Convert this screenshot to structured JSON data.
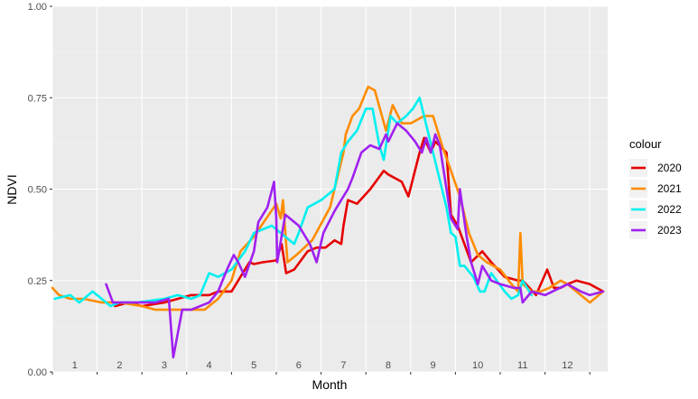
{
  "chart_data": {
    "type": "line",
    "xlabel": "Month",
    "ylabel": "NDVI",
    "xlim": [
      0.5,
      12.9
    ],
    "ylim": [
      0,
      1
    ],
    "yticks": [
      "0.00",
      "0.25",
      "0.50",
      "0.75",
      "1.00"
    ],
    "month_labels": [
      "1",
      "2",
      "3",
      "4",
      "5",
      "6",
      "7",
      "8",
      "9",
      "10",
      "11",
      "12"
    ],
    "grid": true,
    "legend": {
      "title": "colour",
      "position": "right"
    },
    "series": [
      {
        "name": "2020",
        "color": "#e60000",
        "x": [
          1.9,
          2.2,
          2.5,
          3.0,
          3.3,
          3.6,
          3.8,
          4.0,
          4.2,
          4.25,
          4.5,
          4.9,
          5.0,
          5.2,
          5.5,
          5.62,
          5.72,
          5.9,
          6.2,
          6.4,
          6.6,
          6.8,
          6.95,
          7.0,
          7.1,
          7.3,
          7.6,
          7.9,
          8.0,
          8.3,
          8.45,
          8.7,
          8.8,
          8.95,
          9.05,
          9.3,
          9.4,
          9.55,
          9.7,
          9.85,
          10.1,
          10.3,
          10.6,
          10.9,
          11.0,
          11.3,
          11.55,
          11.7,
          11.85,
          12.0,
          12.2,
          12.5,
          12.8
        ],
        "y": [
          0.18,
          0.19,
          0.18,
          0.19,
          0.2,
          0.21,
          0.21,
          0.21,
          0.22,
          0.22,
          0.22,
          0.3,
          0.295,
          0.3,
          0.305,
          0.35,
          0.27,
          0.28,
          0.33,
          0.34,
          0.34,
          0.36,
          0.35,
          0.4,
          0.47,
          0.46,
          0.5,
          0.55,
          0.54,
          0.52,
          0.48,
          0.6,
          0.64,
          0.6,
          0.63,
          0.6,
          0.43,
          0.4,
          0.35,
          0.3,
          0.33,
          0.3,
          0.26,
          0.25,
          0.25,
          0.21,
          0.28,
          0.23,
          0.23,
          0.24,
          0.25,
          0.24,
          0.22
        ]
      },
      {
        "name": "2021",
        "color": "#ff8c00",
        "x": [
          0.5,
          0.65,
          0.9,
          1.2,
          1.6,
          2.0,
          2.5,
          2.8,
          3.1,
          3.5,
          3.9,
          4.2,
          4.5,
          4.7,
          5.0,
          5.5,
          5.6,
          5.65,
          5.75,
          5.95,
          6.3,
          6.7,
          6.9,
          7.0,
          7.05,
          7.2,
          7.35,
          7.55,
          7.7,
          7.95,
          8.1,
          8.3,
          8.5,
          8.8,
          9.0,
          9.2,
          9.4,
          9.6,
          9.8,
          10.0,
          10.2,
          10.5,
          10.75,
          10.9,
          10.95,
          11.0,
          11.2,
          11.4,
          11.6,
          11.85,
          12.0,
          12.3,
          12.5,
          12.8
        ],
        "y": [
          0.23,
          0.21,
          0.2,
          0.2,
          0.19,
          0.19,
          0.18,
          0.17,
          0.17,
          0.17,
          0.17,
          0.2,
          0.25,
          0.33,
          0.37,
          0.46,
          0.42,
          0.47,
          0.3,
          0.32,
          0.36,
          0.45,
          0.55,
          0.6,
          0.65,
          0.7,
          0.72,
          0.78,
          0.77,
          0.66,
          0.73,
          0.68,
          0.68,
          0.7,
          0.7,
          0.62,
          0.55,
          0.48,
          0.38,
          0.32,
          0.3,
          0.28,
          0.24,
          0.22,
          0.38,
          0.24,
          0.22,
          0.22,
          0.23,
          0.25,
          0.24,
          0.21,
          0.19,
          0.22
        ]
      },
      {
        "name": "2022",
        "color": "#00f0f0",
        "x": [
          0.55,
          0.9,
          1.1,
          1.4,
          1.8,
          2.0,
          2.4,
          3.0,
          3.3,
          3.6,
          3.8,
          4.0,
          4.2,
          4.5,
          4.8,
          5.0,
          5.4,
          5.9,
          6.0,
          6.2,
          6.5,
          6.8,
          6.95,
          7.1,
          7.3,
          7.5,
          7.65,
          7.8,
          7.9,
          8.05,
          8.2,
          8.4,
          8.55,
          8.7,
          8.9,
          9.0,
          9.2,
          9.3,
          9.4,
          9.5,
          9.6,
          9.7,
          9.9,
          10.05,
          10.15,
          10.3,
          10.6,
          10.75,
          10.9,
          11.0,
          11.2
        ],
        "y": [
          0.2,
          0.21,
          0.19,
          0.22,
          0.18,
          0.19,
          0.19,
          0.2,
          0.21,
          0.2,
          0.21,
          0.27,
          0.26,
          0.28,
          0.33,
          0.38,
          0.4,
          0.35,
          0.38,
          0.45,
          0.47,
          0.5,
          0.6,
          0.63,
          0.66,
          0.72,
          0.72,
          0.62,
          0.58,
          0.7,
          0.68,
          0.7,
          0.72,
          0.75,
          0.65,
          0.6,
          0.5,
          0.45,
          0.38,
          0.37,
          0.29,
          0.29,
          0.26,
          0.22,
          0.22,
          0.27,
          0.22,
          0.2,
          0.21,
          0.25,
          0.21
        ]
      },
      {
        "name": "2023",
        "color": "#a020f0",
        "x": [
          1.7,
          1.85,
          2.2,
          2.5,
          2.8,
          3.1,
          3.2,
          3.4,
          3.6,
          3.8,
          4.0,
          4.2,
          4.4,
          4.55,
          4.65,
          4.8,
          5.0,
          5.1,
          5.3,
          5.45,
          5.5,
          5.52,
          5.7,
          6.0,
          6.25,
          6.4,
          6.55,
          6.8,
          6.9,
          7.1,
          7.2,
          7.4,
          7.6,
          7.8,
          7.95,
          8.0,
          8.2,
          8.4,
          8.6,
          8.75,
          8.85,
          8.95,
          9.05,
          9.15,
          9.3,
          9.4,
          9.55,
          9.6,
          9.75,
          9.85,
          10.0,
          10.1,
          10.3,
          10.5,
          10.8,
          10.95,
          11.0,
          11.2,
          11.5,
          12.0,
          12.3,
          12.5,
          12.8
        ],
        "y": [
          0.24,
          0.19,
          0.19,
          0.19,
          0.19,
          0.2,
          0.04,
          0.17,
          0.17,
          0.18,
          0.19,
          0.22,
          0.28,
          0.32,
          0.3,
          0.26,
          0.33,
          0.41,
          0.45,
          0.52,
          0.42,
          0.3,
          0.43,
          0.4,
          0.35,
          0.3,
          0.38,
          0.44,
          0.46,
          0.5,
          0.53,
          0.6,
          0.62,
          0.61,
          0.65,
          0.63,
          0.68,
          0.66,
          0.63,
          0.6,
          0.64,
          0.6,
          0.65,
          0.62,
          0.5,
          0.42,
          0.39,
          0.5,
          0.37,
          0.3,
          0.24,
          0.29,
          0.25,
          0.24,
          0.23,
          0.23,
          0.19,
          0.22,
          0.21,
          0.24,
          0.22,
          0.21,
          0.22
        ]
      }
    ]
  }
}
